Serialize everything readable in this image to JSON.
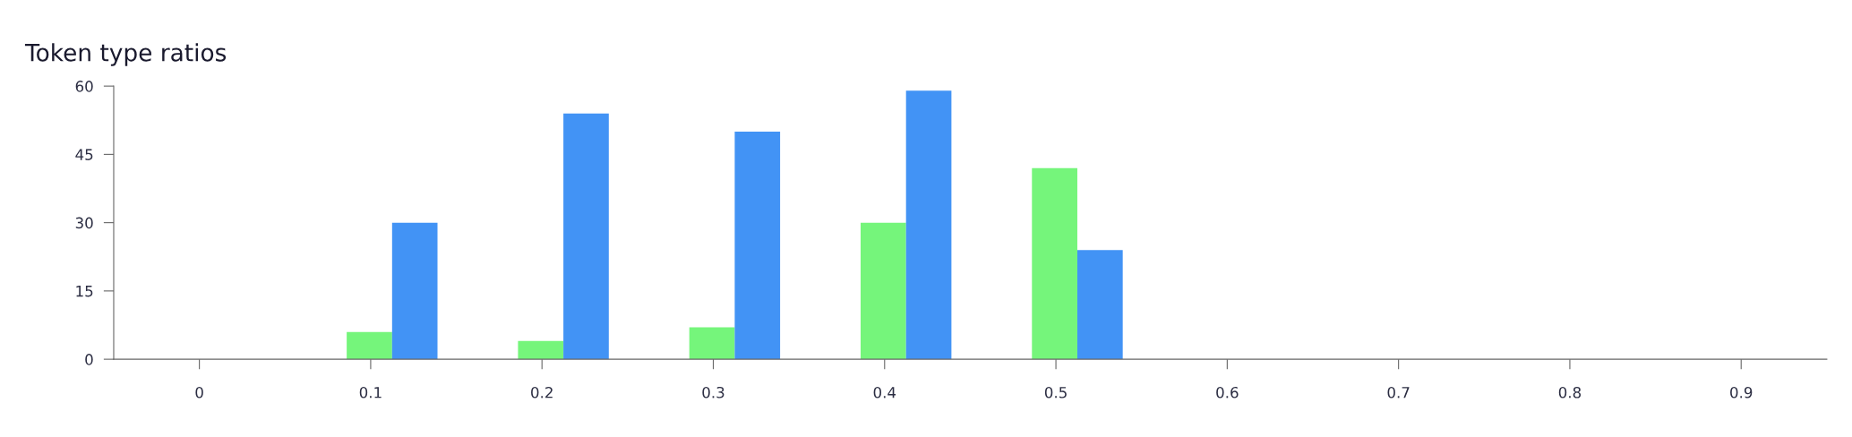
{
  "chart_data": {
    "type": "bar",
    "title": "Token type ratios",
    "categories": [
      "0",
      "0.1",
      "0.2",
      "0.3",
      "0.4",
      "0.5",
      "0.6",
      "0.7",
      "0.8",
      "0.9"
    ],
    "series": [
      {
        "color": "#75f57b",
        "values": [
          0,
          6,
          4,
          7,
          30,
          42,
          0,
          0,
          0,
          0
        ]
      },
      {
        "color": "#4293f5",
        "values": [
          0,
          30,
          54,
          50,
          59,
          24,
          0,
          0,
          0,
          0
        ]
      }
    ],
    "ylim": [
      0,
      60
    ],
    "yticks": [
      0,
      15,
      30,
      45,
      60
    ],
    "grid": false,
    "legend": false
  }
}
